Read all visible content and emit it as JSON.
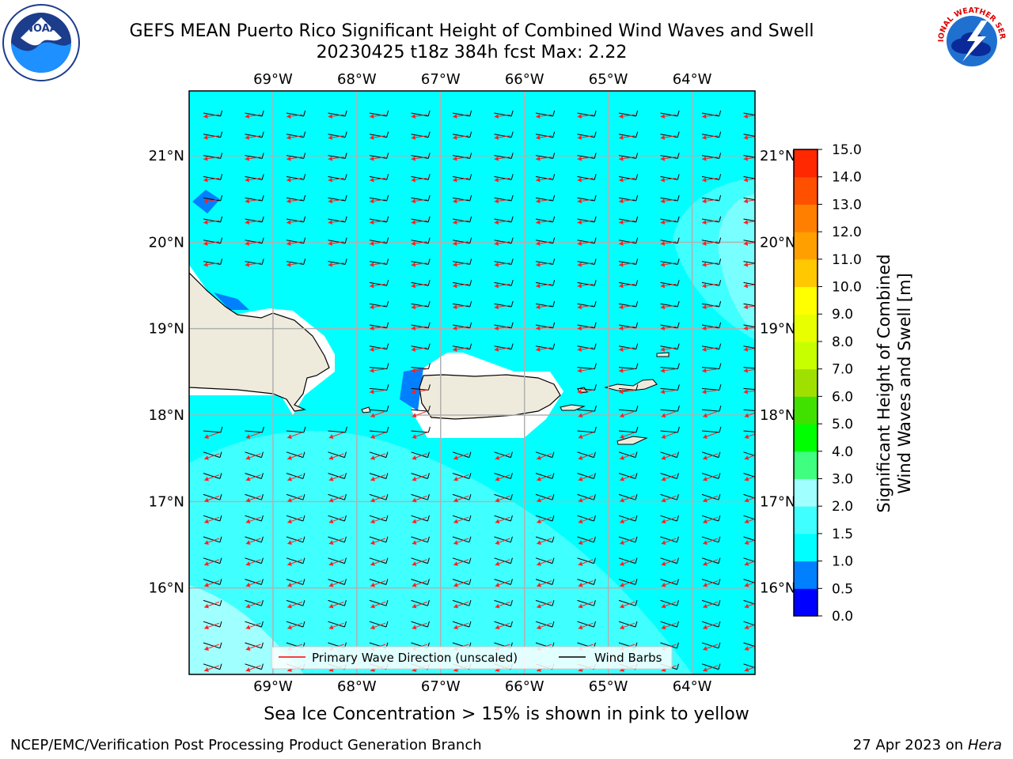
{
  "title": {
    "line1": "GEFS MEAN Puerto Rico Significant Height of Combined Wind Waves and Swell",
    "line2": "20230425 t18z 384h fcst   Max: 2.22"
  },
  "logos": {
    "left": {
      "icon": "noaa-logo-icon",
      "text": "NOAA"
    },
    "right": {
      "icon": "nws-logo-icon",
      "text": "NATIONAL WEATHER SERVICE"
    }
  },
  "map": {
    "lon_range": [
      -70,
      -63.25
    ],
    "lat_range": [
      15,
      21.75
    ],
    "lon_ticks": [
      "69°W",
      "68°W",
      "67°W",
      "66°W",
      "65°W",
      "64°W"
    ],
    "lat_ticks": [
      "21°N",
      "20°N",
      "19°N",
      "18°N",
      "17°N",
      "16°N"
    ],
    "grid": true,
    "land_color": "#efebdc",
    "ocean_color": "#00ffff"
  },
  "legend": {
    "items": [
      {
        "label": "Primary Wave Direction (unscaled)",
        "color": "#ff0000"
      },
      {
        "label": "Wind Barbs",
        "color": "#000000"
      }
    ],
    "placement": "bottom-center"
  },
  "colorbar": {
    "label_line1": "Significant Height of Combined",
    "label_line2": "Wind Waves and Swell [m]",
    "ticks": [
      "0.0",
      "0.5",
      "1.0",
      "1.5",
      "2.0",
      "3.0",
      "4.0",
      "5.0",
      "6.0",
      "7.0",
      "8.0",
      "9.0",
      "10.0",
      "11.0",
      "12.0",
      "13.0",
      "14.0",
      "15.0"
    ],
    "colors": [
      "#0000ff",
      "#0080ff",
      "#00ffff",
      "#40ffff",
      "#a0ffff",
      "#40ff80",
      "#00ff00",
      "#40e000",
      "#a0e000",
      "#c8ff00",
      "#e8ff00",
      "#ffff00",
      "#ffc800",
      "#ffa000",
      "#ff8000",
      "#ff5000",
      "#ff2800"
    ]
  },
  "footer": {
    "subtitle": "Sea Ice Concentration > 15% is shown in pink to yellow",
    "credit_left": "NCEP/EMC/Verification Post Processing Product Generation Branch",
    "credit_date": "27 Apr 2023 on ",
    "credit_host": "Hera"
  }
}
